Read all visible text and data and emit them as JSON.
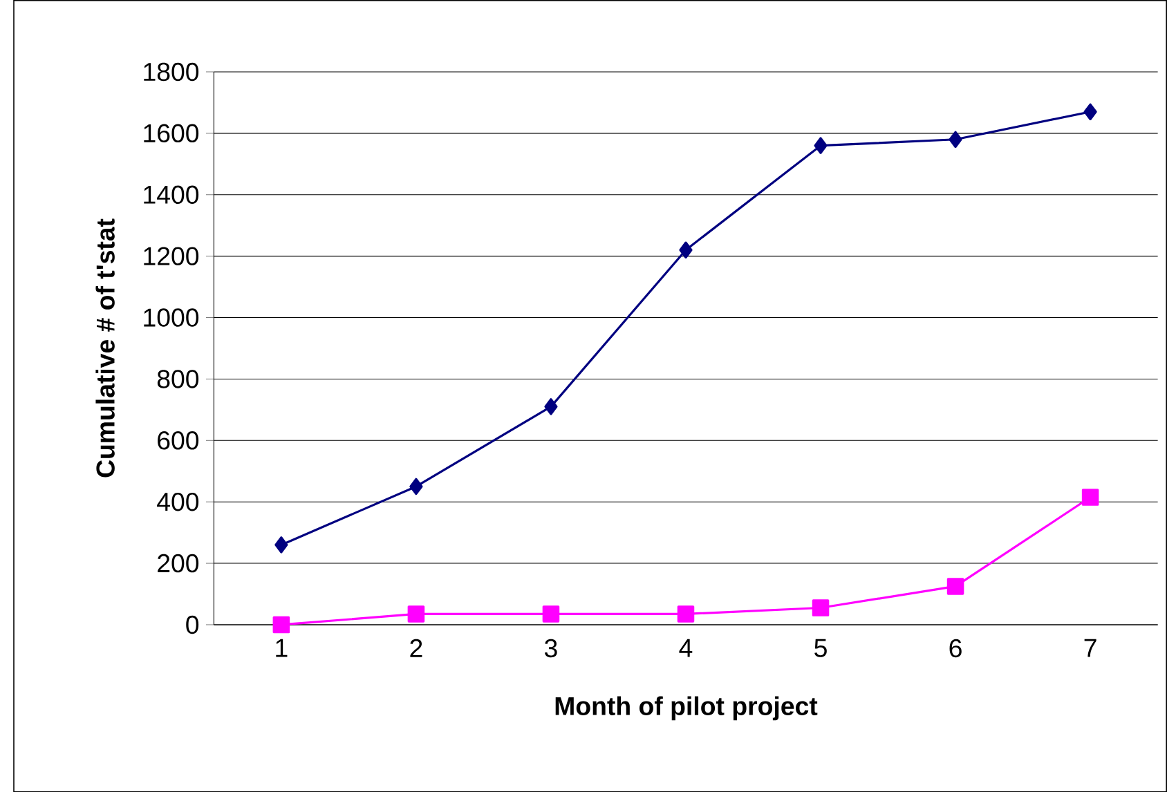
{
  "chart_data": {
    "type": "line",
    "xlabel": "Month of pilot project",
    "ylabel": "Cumulative # of t'stat",
    "categories": [
      "1",
      "2",
      "3",
      "4",
      "5",
      "6",
      "7"
    ],
    "series": [
      {
        "color": "#000080",
        "marker": "diamond",
        "values": [
          260,
          450,
          710,
          1220,
          1560,
          1580,
          1670
        ]
      },
      {
        "color": "#ff00ff",
        "marker": "square",
        "values": [
          0,
          35,
          35,
          35,
          55,
          125,
          415
        ]
      }
    ],
    "ylim": [
      0,
      1800
    ],
    "yticks": [
      0,
      200,
      400,
      600,
      800,
      1000,
      1200,
      1400,
      1600,
      1800
    ],
    "grid": "y",
    "line_style": "solid"
  }
}
